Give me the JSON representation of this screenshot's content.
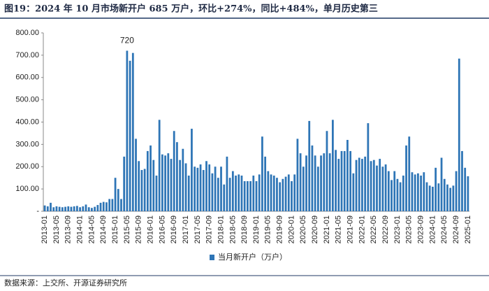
{
  "chart_data": {
    "type": "bar",
    "title": "图19：2024 年 10 月市场新开户 685 万户，环比+274%，同比+484%，单月历史第三",
    "source": "数据来源：上交所、开源证券研究所",
    "categories": [
      "2013-01",
      null,
      null,
      null,
      "2013-05",
      null,
      null,
      null,
      "2013-09",
      null,
      null,
      null,
      "2014-01",
      null,
      null,
      null,
      "2014-05",
      null,
      null,
      null,
      "2014-09",
      null,
      null,
      null,
      "2015-01",
      null,
      null,
      null,
      "2015-05",
      null,
      null,
      null,
      "2015-09",
      null,
      null,
      null,
      "2016-01",
      null,
      null,
      null,
      "2016-05",
      null,
      null,
      null,
      "2016-09",
      null,
      null,
      null,
      "2017-01",
      null,
      null,
      null,
      "2017-05",
      null,
      null,
      null,
      "2017-09",
      null,
      null,
      null,
      "2018-01",
      null,
      null,
      null,
      "2018-05",
      null,
      null,
      null,
      "2018-09",
      null,
      null,
      null,
      "2019-01",
      null,
      null,
      null,
      "2019-05",
      null,
      null,
      null,
      "2019-09",
      null,
      null,
      null,
      "2020-01",
      null,
      null,
      null,
      "2020-05",
      null,
      null,
      null,
      "2020-09",
      null,
      null,
      null,
      "2021-01",
      null,
      null,
      null,
      "2021-05",
      null,
      null,
      null,
      "2021-09",
      null,
      null,
      null,
      "2022-01",
      null,
      null,
      null,
      "2022-05",
      null,
      null,
      null,
      "2022-09",
      null,
      null,
      null,
      "2023-01",
      null,
      null,
      null,
      "2023-05",
      null,
      null,
      null,
      "2023-09",
      null,
      null,
      null,
      "2024-01",
      null,
      null,
      null,
      "2024-05",
      null,
      null,
      null,
      "2024-09",
      null,
      null,
      null,
      "2025-01"
    ],
    "series": [
      {
        "name": "当月新开户（万户）",
        "color": "#2e75b6",
        "values": [
          26,
          22,
          38,
          18,
          22,
          20,
          18,
          20,
          22,
          20,
          22,
          24,
          18,
          22,
          30,
          18,
          15,
          20,
          28,
          38,
          42,
          40,
          55,
          55,
          150,
          100,
          55,
          245,
          720,
          675,
          710,
          325,
          225,
          185,
          190,
          270,
          295,
          230,
          160,
          410,
          255,
          250,
          260,
          235,
          360,
          310,
          230,
          280,
          215,
          160,
          370,
          200,
          195,
          210,
          185,
          225,
          210,
          170,
          200,
          150,
          200,
          120,
          245,
          150,
          180,
          160,
          165,
          160,
          135,
          135,
          135,
          160,
          135,
          165,
          335,
          245,
          180,
          165,
          160,
          150,
          130,
          145,
          155,
          165,
          135,
          165,
          325,
          260,
          200,
          250,
          405,
          295,
          250,
          200,
          250,
          260,
          360,
          260,
          410,
          275,
          235,
          270,
          270,
          320,
          270,
          170,
          230,
          240,
          235,
          245,
          395,
          225,
          230,
          205,
          235,
          200,
          210,
          180,
          140,
          180,
          145,
          130,
          160,
          295,
          335,
          175,
          165,
          170,
          160,
          175,
          130,
          115,
          110,
          195,
          125,
          240,
          145,
          120,
          105,
          115,
          180,
          684.68,
          270,
          195,
          157
        ]
      }
    ],
    "ylim": [
      0,
      800
    ],
    "yticks": [
      {
        "value": 0,
        "label": "-"
      },
      {
        "value": 100,
        "label": "100.00"
      },
      {
        "value": 200,
        "label": "200.00"
      },
      {
        "value": 300,
        "label": "300.00"
      },
      {
        "value": 400,
        "label": "400.00"
      },
      {
        "value": 500,
        "label": "500.00"
      },
      {
        "value": 600,
        "label": "600.00"
      },
      {
        "value": 700,
        "label": "700.00"
      },
      {
        "value": 800,
        "label": "800.00"
      }
    ],
    "grid": false,
    "legend": "bottom"
  }
}
